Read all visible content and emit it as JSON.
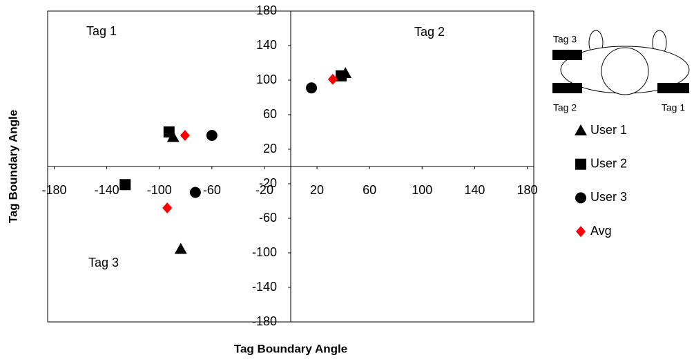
{
  "chart_data": {
    "type": "scatter",
    "x_label": "Tag Boundary Angle",
    "y_label": "Tag Boundary Angle",
    "xlim": [
      -185,
      185
    ],
    "ylim": [
      -180,
      180
    ],
    "xticks": [
      -180,
      -140,
      -100,
      -60,
      -20,
      20,
      60,
      100,
      140,
      180
    ],
    "yticks": [
      -180,
      -140,
      -100,
      -60,
      -20,
      20,
      60,
      100,
      140,
      180
    ],
    "annotations": [
      "Tag 1",
      "Tag 2",
      "Tag 3"
    ],
    "diagram_labels": [
      "Tag 3",
      "Tag 2",
      "Tag 1"
    ],
    "series": [
      {
        "name": "User 1",
        "marker": "triangle",
        "color": "#000000",
        "x": [
          41.6,
          -89.5,
          -83.7
        ],
        "y": [
          108,
          34,
          -95.6
        ]
      },
      {
        "name": "User 2",
        "marker": "square",
        "color": "#000000",
        "x": [
          38.4,
          -92.6,
          -126
        ],
        "y": [
          105,
          40,
          -21
        ]
      },
      {
        "name": "User 3",
        "marker": "circle",
        "color": "#000000",
        "x": [
          15.8,
          -60,
          -72.6
        ],
        "y": [
          91,
          36,
          -30
        ]
      },
      {
        "name": "Avg",
        "marker": "diamond",
        "color": "#ff0000",
        "x": [
          32,
          -80.5,
          -94
        ],
        "y": [
          101,
          36,
          -48
        ]
      }
    ]
  }
}
